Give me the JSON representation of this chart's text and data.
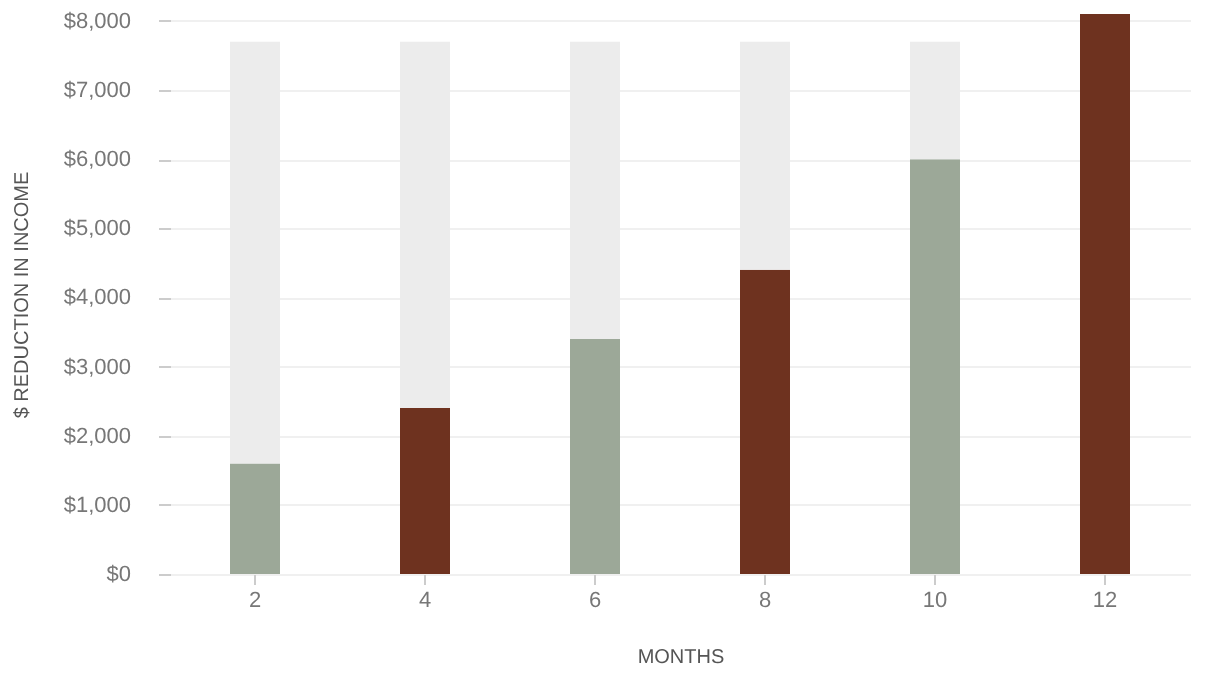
{
  "chart_data": {
    "type": "bar",
    "stacked": true,
    "xlabel": "MONTHS",
    "ylabel": "$ REDUCTION IN INCOME",
    "categories": [
      "2",
      "4",
      "6",
      "8",
      "10",
      "12"
    ],
    "series": [
      {
        "colors": [
          "#9ca898",
          "#6e321f",
          "#9ca898",
          "#6e321f",
          "#9ca898",
          "#6e321f"
        ],
        "values": [
          1600,
          2400,
          3400,
          4400,
          6000,
          8100
        ]
      },
      {
        "color": "#ececec",
        "values": [
          6100,
          5300,
          4300,
          3300,
          1700,
          null
        ]
      }
    ],
    "ylim": [
      0,
      8100
    ],
    "yticks": [
      {
        "value": 0,
        "label": "$0"
      },
      {
        "value": 1000,
        "label": "$1,000"
      },
      {
        "value": 2000,
        "label": "$2,000"
      },
      {
        "value": 3000,
        "label": "$3,000"
      },
      {
        "value": 4000,
        "label": "$4,000"
      },
      {
        "value": 5000,
        "label": "$5,000"
      },
      {
        "value": 6000,
        "label": "$6,000"
      },
      {
        "value": 7000,
        "label": "$7,000"
      },
      {
        "value": 8000,
        "label": "$8,000"
      }
    ],
    "grid": "y"
  }
}
